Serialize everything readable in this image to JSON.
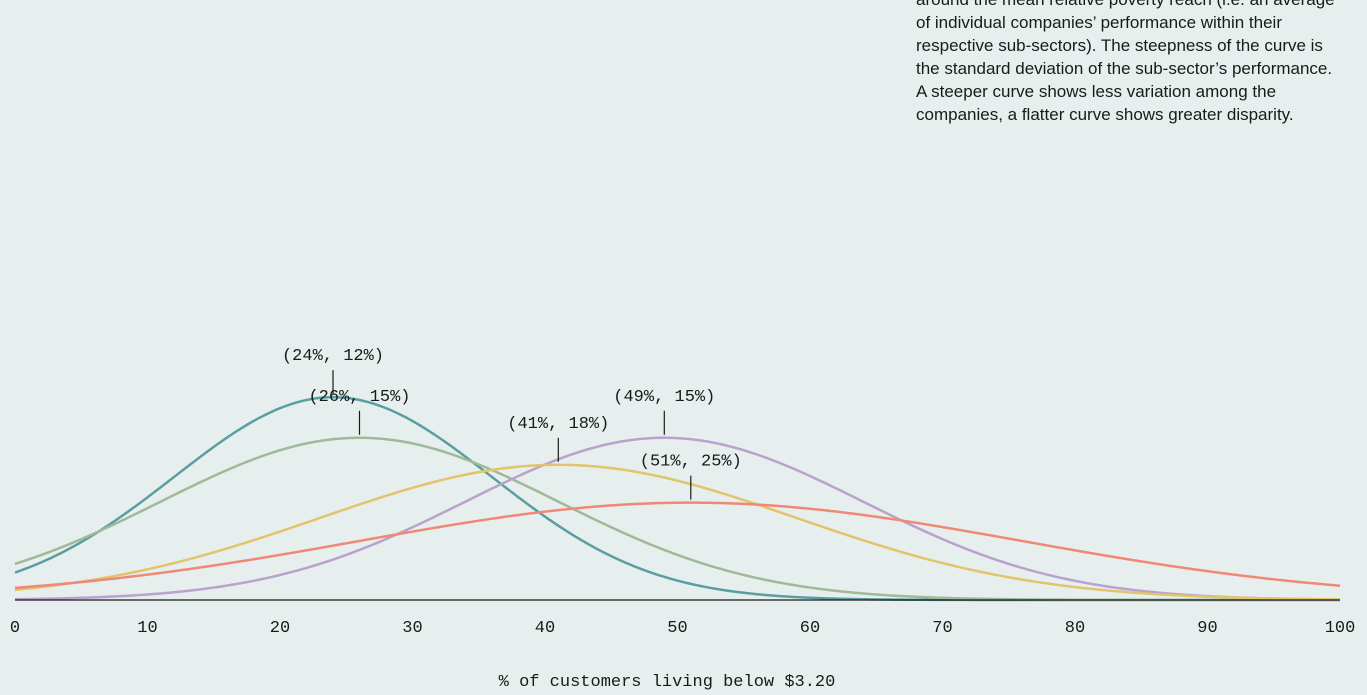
{
  "chart_data": {
    "type": "line",
    "xlabel": "% of customers living below $3.20",
    "ylabel": "",
    "xlim": [
      0,
      100
    ],
    "x_ticks": [
      "0",
      "10",
      "20",
      "30",
      "40",
      "50",
      "60",
      "70",
      "80",
      "90",
      "100"
    ],
    "grid": false,
    "series": [
      {
        "mean": 24,
        "sd": 12,
        "color": "#5a9ea2",
        "peak_label": "(24%, 12%)"
      },
      {
        "mean": 26,
        "sd": 15,
        "color": "#9fb999",
        "peak_label": "(26%, 15%)"
      },
      {
        "mean": 49,
        "sd": 15,
        "color": "#b9a2cc",
        "peak_label": "(49%, 15%)"
      },
      {
        "mean": 41,
        "sd": 18,
        "color": "#e3c36c",
        "peak_label": "(41%, 18%)"
      },
      {
        "mean": 51,
        "sd": 25,
        "color": "#f08878",
        "peak_label": "(51%, 25%)"
      }
    ],
    "annotation": "around the mean relative poverty reach (i.e. an average of individual companies’ performance within their respective sub-sectors). The steepness of the curve is the standard deviation of the sub-sector’s performance. A steeper curve shows less variation among the companies, a flatter curve shows greater disparity."
  }
}
